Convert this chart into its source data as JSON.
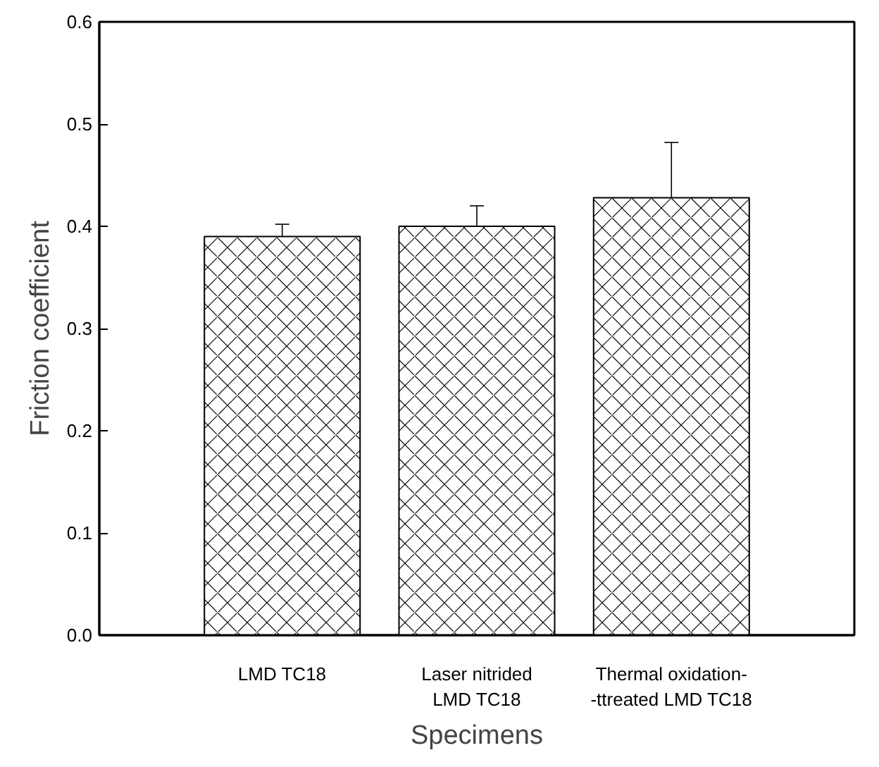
{
  "chart_data": {
    "type": "bar",
    "xlabel": "Specimens",
    "ylabel": "Friction coefficient",
    "categories": [
      "LMD TC18",
      "Laser nitrided\nLMD TC18",
      "Thermal oxidation-\n-ttreated LMD TC18"
    ],
    "values": [
      0.39,
      0.4,
      0.428
    ],
    "errors": [
      0.012,
      0.02,
      0.054
    ],
    "color": "#ffffff",
    "ylim": [
      0,
      0.6
    ],
    "yticks": [
      {
        "value": 0,
        "label": "0.0"
      },
      0.1,
      0.2,
      0.3,
      0.4,
      0.5,
      0.6
    ],
    "grid": false
  }
}
